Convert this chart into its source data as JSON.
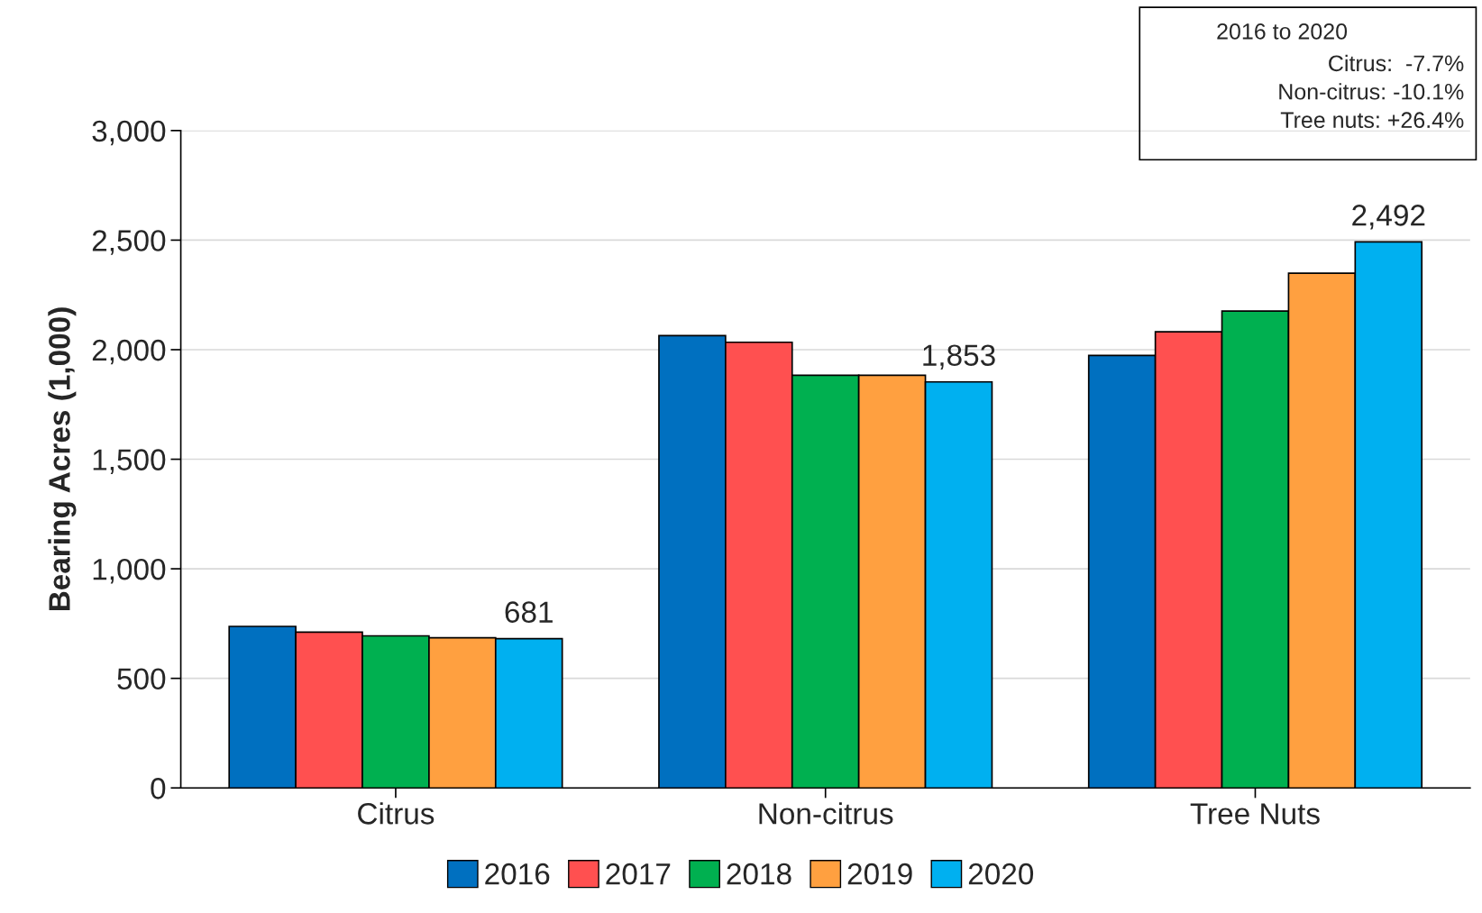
{
  "chart_data": {
    "type": "bar",
    "ylabel": "Bearing Acres (1,000)",
    "categories": [
      "Citrus",
      "Non-citrus",
      "Tree Nuts"
    ],
    "series": [
      {
        "name": "2016",
        "color": "#0070c0",
        "values": [
          737,
          2064,
          1974
        ]
      },
      {
        "name": "2017",
        "color": "#ff5050",
        "values": [
          711,
          2034,
          2082
        ]
      },
      {
        "name": "2018",
        "color": "#00b050",
        "values": [
          694,
          1883,
          2176
        ]
      },
      {
        "name": "2019",
        "color": "#ffa040",
        "values": [
          685,
          1883,
          2349
        ]
      },
      {
        "name": "2020",
        "color": "#00b0f0",
        "values": [
          681,
          1853,
          2492
        ],
        "value_labels": [
          "681",
          "1,853",
          "2,492"
        ]
      }
    ],
    "ylim": [
      0,
      3000
    ],
    "yticks": [
      {
        "value": 0,
        "label": "0"
      },
      {
        "value": 500,
        "label": "500"
      },
      {
        "value": 1000,
        "label": "1,000"
      },
      {
        "value": 1500,
        "label": "1,500"
      },
      {
        "value": 2000,
        "label": "2,000"
      },
      {
        "value": 2500,
        "label": "2,500"
      },
      {
        "value": 3000,
        "label": "3,000"
      }
    ],
    "grid": "y",
    "legend": "bottom",
    "annotations": [
      "2016 to 2020",
      "Citrus:  -7.7%",
      "Non-citrus: -10.1%",
      "Tree nuts: +26.4%"
    ]
  }
}
